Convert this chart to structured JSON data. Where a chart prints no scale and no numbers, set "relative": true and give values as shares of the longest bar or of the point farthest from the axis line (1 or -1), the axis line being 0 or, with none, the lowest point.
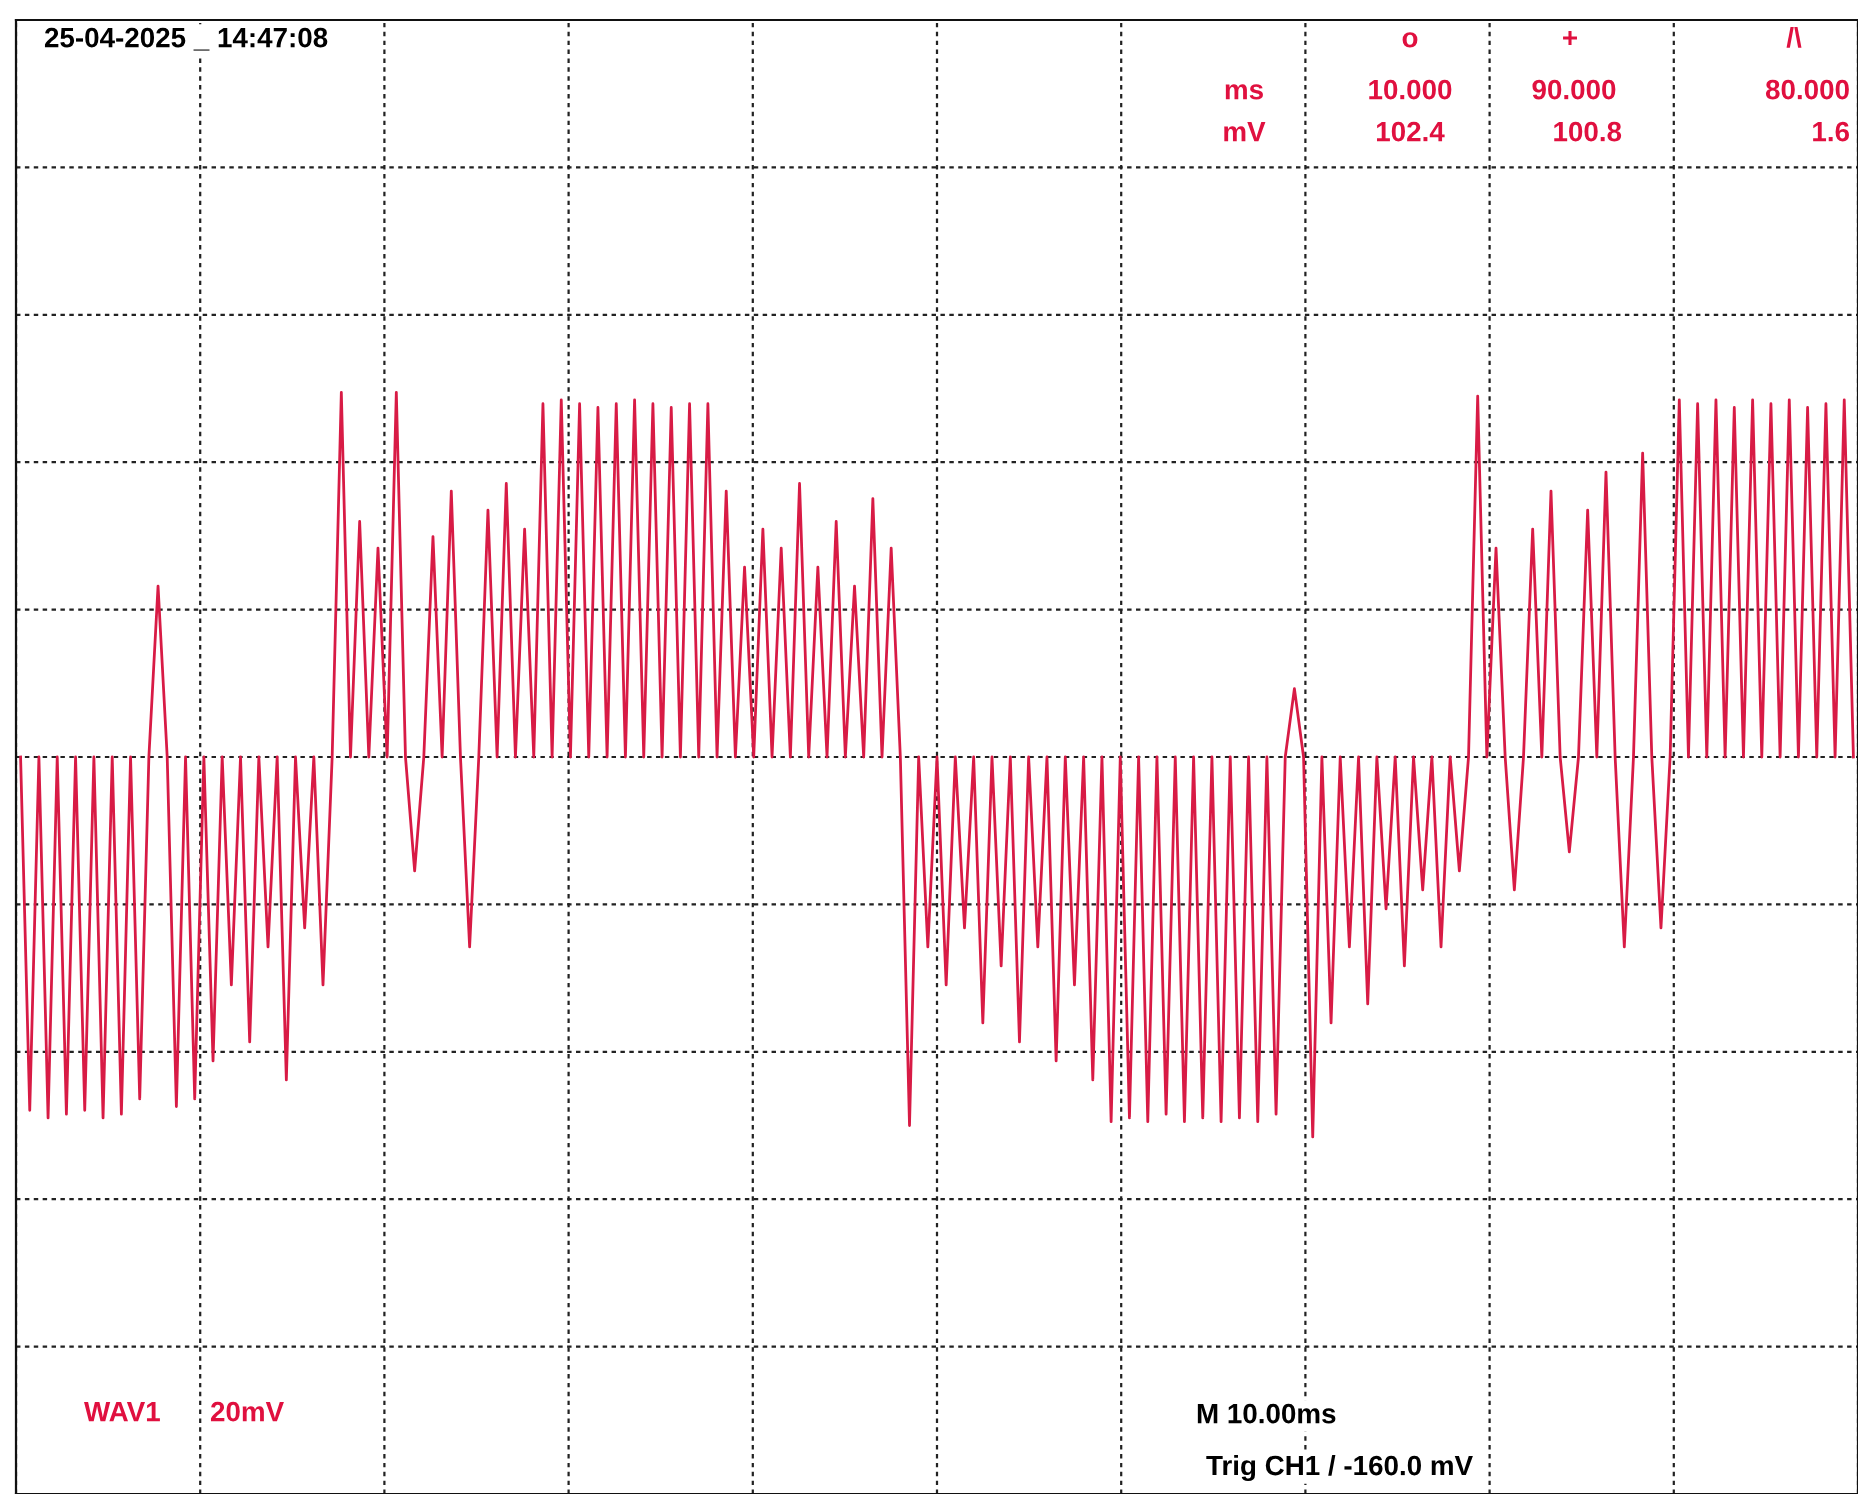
{
  "chart_data": {
    "type": "line",
    "relative": true,
    "grid": true,
    "legend": false,
    "marker": "none",
    "line_style": "solid",
    "series": [
      {
        "color": "#d81b45",
        "values": [
          0,
          -0.93,
          0,
          -0.95,
          0,
          -0.94,
          0,
          -0.93,
          0,
          -0.95,
          0,
          -0.94,
          0,
          -0.9,
          0,
          0.45,
          0,
          -0.92,
          0,
          -0.9,
          0,
          -0.8,
          0,
          -0.6,
          0,
          -0.75,
          0,
          -0.5,
          0,
          -0.85,
          0,
          -0.45,
          0,
          -0.6,
          0,
          0.96,
          0,
          0.62,
          0,
          0.55,
          0,
          0.96,
          0,
          -0.3,
          0,
          0.58,
          0,
          0.7,
          0,
          -0.5,
          0,
          0.65,
          0,
          0.72,
          0,
          0.6,
          0,
          0.93,
          0,
          0.94,
          0,
          0.93,
          0,
          0.92,
          0,
          0.93,
          0,
          0.94,
          0,
          0.93,
          0,
          0.92,
          0,
          0.93,
          0,
          0.93,
          0,
          0.7,
          0,
          0.5,
          0,
          0.6,
          0,
          0.55,
          0,
          0.72,
          0,
          0.5,
          0,
          0.62,
          0,
          0.45,
          0,
          0.68,
          0,
          0.55,
          0,
          -0.97,
          0,
          -0.5,
          0,
          -0.6,
          0,
          -0.45,
          0,
          -0.7,
          0,
          -0.55,
          0,
          -0.75,
          0,
          -0.5,
          0,
          -0.8,
          0,
          -0.6,
          0,
          -0.85,
          0,
          -0.96,
          0,
          -0.95,
          0,
          -0.96,
          0,
          -0.94,
          0,
          -0.96,
          0,
          -0.95,
          0,
          -0.96,
          0,
          -0.95,
          0,
          -0.96,
          0,
          -0.94,
          0,
          0.18,
          0,
          -1,
          0,
          -0.7,
          0,
          -0.5,
          0,
          -0.65,
          0,
          -0.4,
          0,
          -0.55,
          0,
          -0.35,
          0,
          -0.5,
          0,
          -0.3,
          0,
          0.95,
          0,
          0.55,
          0,
          -0.35,
          0,
          0.6,
          0,
          0.7,
          0,
          -0.25,
          0,
          0.65,
          0,
          0.75,
          0,
          -0.5,
          0,
          0.8,
          0,
          -0.45,
          0,
          0.94,
          0,
          0.93,
          0,
          0.94,
          0,
          0.92,
          0,
          0.94,
          0,
          0.93,
          0,
          0.94,
          0,
          0.92,
          0,
          0.93,
          0,
          0.94,
          0
        ]
      }
    ],
    "categories": [
      null,
      null,
      null,
      null,
      null,
      null,
      null,
      null,
      null,
      null,
      null,
      null,
      null,
      null,
      null,
      null,
      null,
      null,
      null,
      null,
      null,
      null,
      null,
      null,
      null,
      null,
      null,
      null,
      null,
      null,
      null,
      null,
      null,
      null,
      null,
      null,
      null,
      null,
      null,
      null,
      null,
      null,
      null,
      null,
      null,
      null,
      null,
      null,
      null,
      null,
      null,
      null,
      null,
      null,
      null,
      null,
      null,
      null,
      null,
      null,
      null,
      null,
      null,
      null,
      null,
      null,
      null,
      null,
      null,
      null,
      null,
      null,
      null,
      null,
      null,
      null,
      null,
      null,
      null,
      null,
      null,
      null,
      null,
      null,
      null,
      null,
      null,
      null,
      null,
      null,
      null,
      null,
      null,
      null,
      null,
      null,
      null,
      null,
      null,
      null,
      null,
      null,
      null,
      null,
      null,
      null,
      null,
      null,
      null,
      null,
      null,
      null,
      null,
      null,
      null,
      null,
      null,
      null,
      null,
      null,
      null,
      null,
      null,
      null,
      null,
      null,
      null,
      null,
      null,
      null,
      null,
      null,
      null,
      null,
      null,
      null,
      null,
      null,
      null,
      null,
      null,
      null,
      null,
      null,
      null,
      null,
      null,
      null,
      null,
      null,
      null,
      null,
      null,
      null,
      null,
      null,
      null,
      null,
      null,
      null,
      null,
      null,
      null,
      null,
      null,
      null,
      null,
      null,
      null,
      null,
      null,
      null,
      null,
      null,
      null,
      null,
      null,
      null,
      null,
      null,
      null,
      null,
      null,
      null,
      null,
      null,
      null,
      null,
      null,
      null,
      null,
      null,
      null,
      null,
      null,
      null,
      null,
      null,
      null,
      null,
      null
    ],
    "annotations": [
      "25-04-2025 _ 14:47:08",
      "o",
      "+",
      "/\\",
      "ms",
      "10.000",
      "90.000",
      "80.000",
      "mV",
      "102.4",
      "100.8",
      "1.6",
      "WAV1",
      "20mV",
      "M 10.00ms",
      "Trig CH1 / -160.0 mV"
    ]
  }
}
